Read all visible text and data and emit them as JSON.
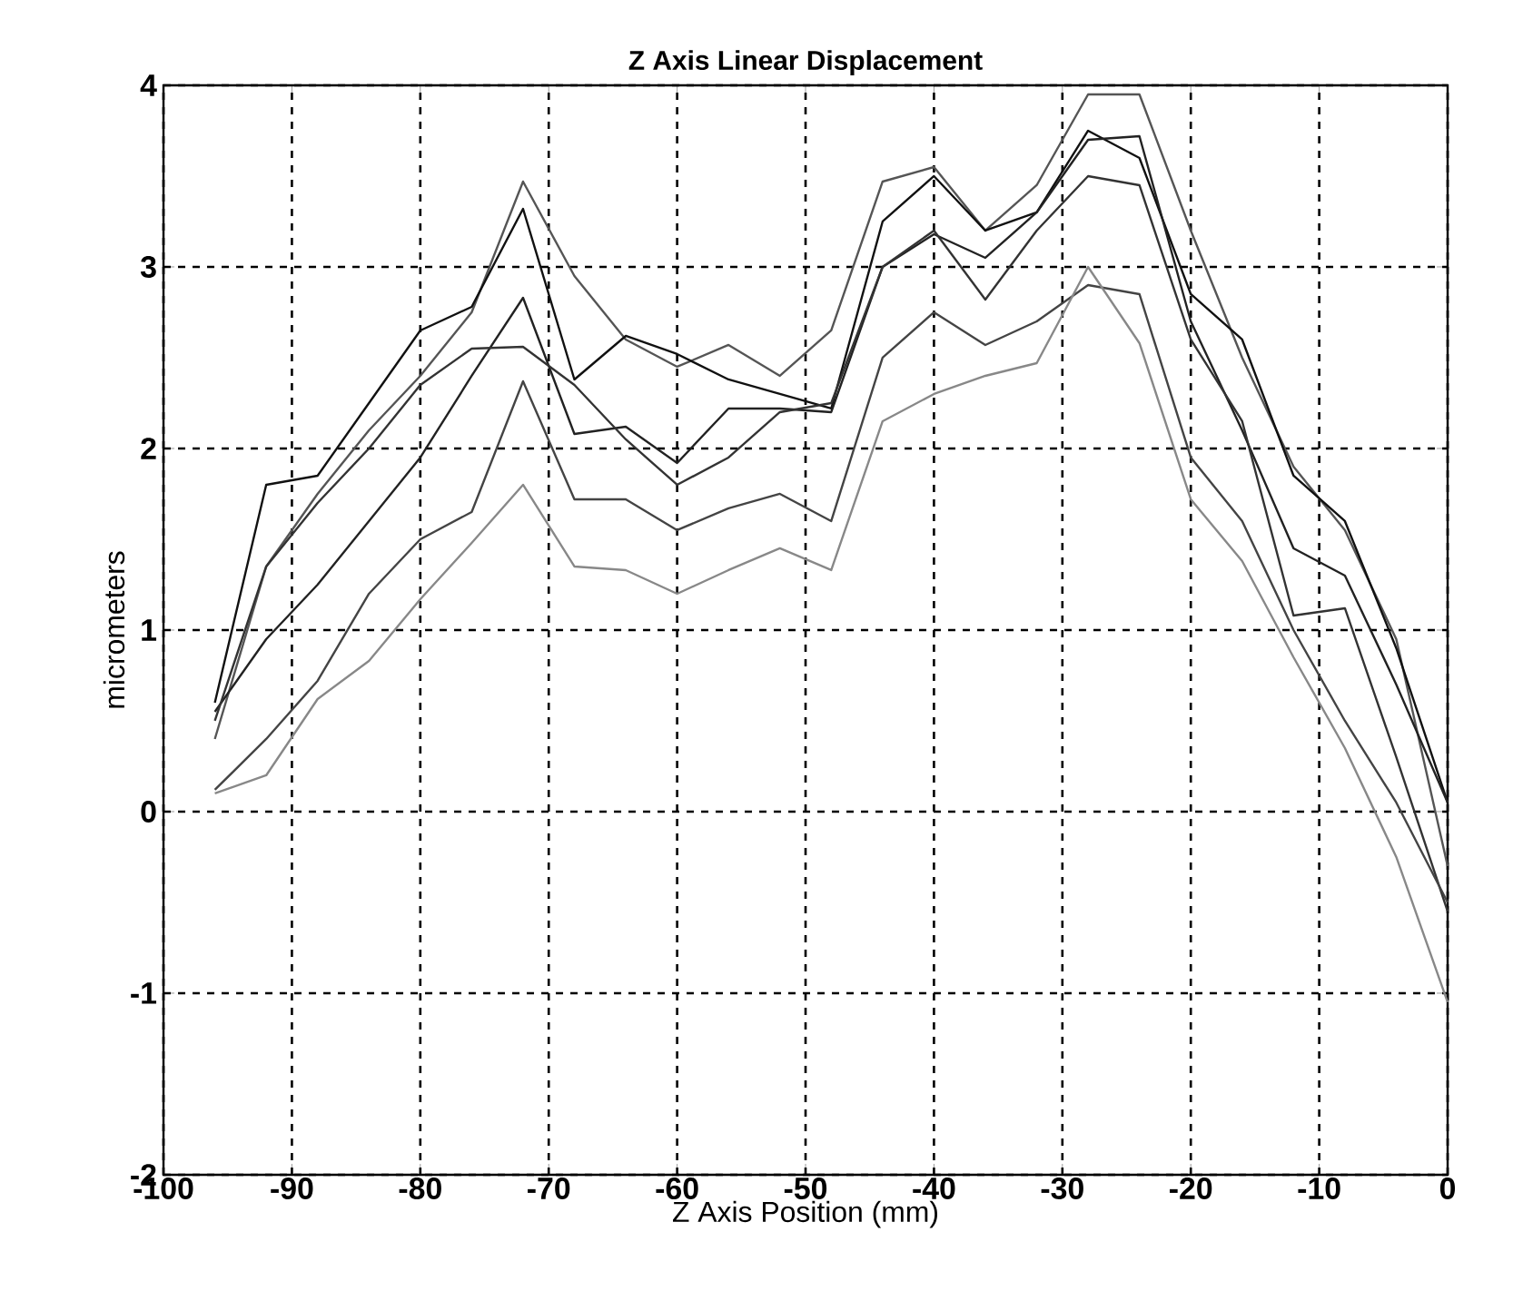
{
  "chart_data": {
    "type": "line",
    "title": "Z Axis Linear Displacement",
    "xlabel": "Z Axis Position (mm)",
    "ylabel": "micrometers",
    "x": [
      -96,
      -92,
      -88,
      -84,
      -80,
      -76,
      -72,
      -68,
      -64,
      -60,
      -56,
      -52,
      -48,
      -44,
      -40,
      -36,
      -32,
      -28,
      -24,
      -20,
      -16,
      -12,
      -8,
      -4,
      0
    ],
    "series": [
      {
        "color": "#555555",
        "values": [
          0.4,
          1.35,
          1.75,
          2.1,
          2.4,
          2.75,
          3.47,
          2.95,
          2.6,
          2.45,
          2.57,
          2.4,
          2.65,
          3.47,
          3.55,
          3.2,
          3.45,
          3.95,
          3.95,
          3.2,
          2.5,
          1.9,
          1.55,
          0.95,
          -0.3
        ]
      },
      {
        "color": "#111111",
        "values": [
          0.6,
          1.8,
          1.85,
          2.25,
          2.65,
          2.78,
          3.32,
          2.38,
          2.62,
          2.52,
          2.38,
          2.3,
          2.22,
          3.25,
          3.5,
          3.2,
          3.3,
          3.75,
          3.6,
          2.85,
          2.6,
          1.85,
          1.6,
          0.9,
          0.05
        ]
      },
      {
        "color": "#222222",
        "values": [
          0.55,
          0.95,
          1.25,
          1.6,
          1.95,
          2.4,
          2.83,
          2.08,
          2.12,
          1.92,
          2.22,
          2.22,
          2.2,
          3.0,
          3.18,
          3.05,
          3.3,
          3.7,
          3.72,
          2.7,
          2.1,
          1.45,
          1.3,
          0.7,
          0.05
        ]
      },
      {
        "color": "#333333",
        "values": [
          0.5,
          1.35,
          1.7,
          2.0,
          2.35,
          2.55,
          2.56,
          2.35,
          2.05,
          1.8,
          1.95,
          2.2,
          2.25,
          3.0,
          3.2,
          2.82,
          3.2,
          3.5,
          3.45,
          2.6,
          2.15,
          1.08,
          1.12,
          0.3,
          -0.55
        ]
      },
      {
        "color": "#444444",
        "values": [
          0.12,
          0.4,
          0.72,
          1.2,
          1.5,
          1.65,
          2.37,
          1.72,
          1.72,
          1.55,
          1.67,
          1.75,
          1.6,
          2.5,
          2.75,
          2.57,
          2.7,
          2.9,
          2.85,
          1.95,
          1.6,
          1.0,
          0.5,
          0.05,
          -0.5
        ]
      },
      {
        "color": "#888888",
        "values": [
          0.1,
          0.2,
          0.62,
          0.83,
          1.17,
          1.48,
          1.8,
          1.35,
          1.33,
          1.2,
          1.33,
          1.45,
          1.33,
          2.15,
          2.3,
          2.4,
          2.47,
          3.0,
          2.58,
          1.72,
          1.38,
          0.85,
          0.35,
          -0.25,
          -1.05
        ]
      }
    ],
    "xlim": [
      -100,
      0
    ],
    "ylim": [
      -2,
      4
    ],
    "xticks": [
      -100,
      -90,
      -80,
      -70,
      -60,
      -50,
      -40,
      -30,
      -20,
      -10,
      0
    ],
    "yticks": [
      -2,
      -1,
      0,
      1,
      2,
      3,
      4
    ],
    "grid": true,
    "line_style": "solid",
    "marker": "none"
  }
}
